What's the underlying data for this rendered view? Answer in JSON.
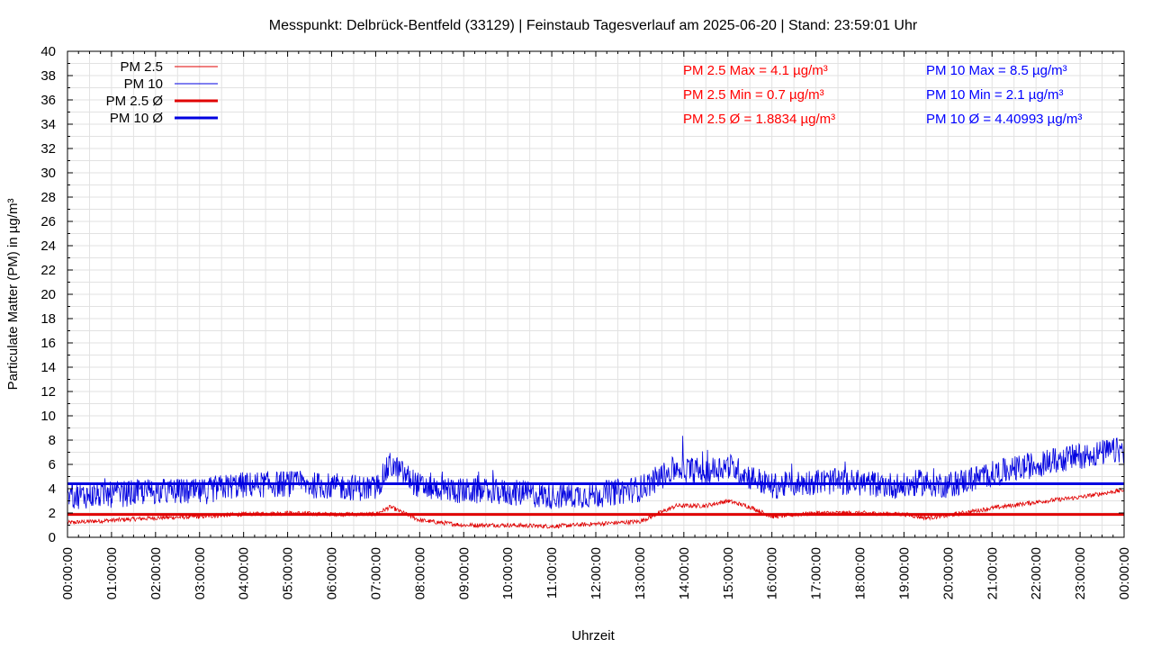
{
  "chart_data": {
    "type": "line",
    "title": "Messpunkt: Delbrück-Bentfeld (33129) | Feinstaub Tagesverlauf am 2025-06-20 | Stand: 23:59:01 Uhr",
    "xlabel": "Uhrzeit",
    "ylabel": "Particulate Matter (PM) in µg/m³",
    "ylim": [
      0,
      40
    ],
    "yticks": [
      0,
      2,
      4,
      6,
      8,
      10,
      12,
      14,
      16,
      18,
      20,
      22,
      24,
      26,
      28,
      30,
      32,
      34,
      36,
      38,
      40
    ],
    "xlim": [
      "00:00:00",
      "24:00:00"
    ],
    "xtick_labels": [
      "00:00:00",
      "01:00:00",
      "02:00:00",
      "03:00:00",
      "04:00:00",
      "05:00:00",
      "06:00:00",
      "07:00:00",
      "08:00:00",
      "09:00:00",
      "10:00:00",
      "11:00:00",
      "12:00:00",
      "13:00:00",
      "14:00:00",
      "15:00:00",
      "16:00:00",
      "17:00:00",
      "18:00:00",
      "19:00:00",
      "20:00:00",
      "21:00:00",
      "22:00:00",
      "23:00:00",
      "00:00:00"
    ],
    "grid": true,
    "legend_position": "top-left",
    "legend": [
      {
        "label": "PM 2.5",
        "color": "#e00000",
        "style": "thin"
      },
      {
        "label": "PM 10",
        "color": "#0000e0",
        "style": "thin"
      },
      {
        "label": "PM 2.5 Ø",
        "color": "#e00000",
        "style": "thick"
      },
      {
        "label": "PM 10 Ø",
        "color": "#0000e0",
        "style": "thick"
      }
    ],
    "stats_pm25": [
      "PM 2.5 Max = 4.1 µg/m³",
      "PM 2.5 Min = 0.7 µg/m³",
      "PM 2.5 Ø = 1.8834 µg/m³"
    ],
    "stats_pm10": [
      "PM 10 Max = 8.5 µg/m³",
      "PM 10 Min = 2.1 µg/m³",
      "PM 10 Ø = 4.40993 µg/m³"
    ],
    "series": [
      {
        "name": "PM 2.5",
        "color": "#e00000",
        "x": [
          "00:00:00",
          "01:00:00",
          "02:00:00",
          "03:00:00",
          "04:00:00",
          "05:00:00",
          "06:00:00",
          "07:00:00",
          "07:20:00",
          "08:00:00",
          "09:00:00",
          "10:00:00",
          "11:00:00",
          "12:00:00",
          "13:00:00",
          "13:50:00",
          "14:30:00",
          "15:00:00",
          "15:30:00",
          "16:00:00",
          "17:00:00",
          "18:00:00",
          "19:00:00",
          "19:30:00",
          "20:00:00",
          "21:00:00",
          "22:00:00",
          "23:00:00",
          "24:00:00"
        ],
        "values": [
          1.2,
          1.4,
          1.6,
          1.7,
          1.9,
          2.0,
          1.9,
          1.9,
          2.5,
          1.4,
          1.0,
          1.0,
          0.9,
          1.1,
          1.3,
          2.6,
          2.6,
          3.0,
          2.5,
          1.7,
          2.0,
          2.0,
          1.9,
          1.6,
          1.8,
          2.4,
          2.9,
          3.3,
          3.9
        ]
      },
      {
        "name": "PM 10",
        "color": "#0000e0",
        "x": [
          "00:00:00",
          "01:00:00",
          "02:00:00",
          "03:00:00",
          "03:40:00",
          "04:00:00",
          "05:00:00",
          "06:00:00",
          "07:00:00",
          "07:20:00",
          "08:00:00",
          "09:00:00",
          "10:00:00",
          "11:00:00",
          "12:00:00",
          "13:00:00",
          "13:50:00",
          "14:30:00",
          "15:00:00",
          "15:30:00",
          "16:00:00",
          "17:00:00",
          "18:00:00",
          "19:00:00",
          "19:20:00",
          "20:00:00",
          "21:00:00",
          "22:00:00",
          "23:00:00",
          "24:00:00"
        ],
        "values": [
          3.4,
          3.5,
          3.8,
          3.7,
          4.2,
          4.3,
          4.4,
          4.2,
          4.0,
          6.0,
          4.2,
          3.8,
          3.7,
          3.4,
          3.5,
          4.0,
          5.7,
          5.4,
          5.9,
          5.0,
          4.2,
          4.6,
          4.5,
          4.2,
          4.5,
          4.3,
          5.2,
          6.0,
          6.7,
          7.2
        ]
      },
      {
        "name": "PM 2.5 Ø",
        "color": "#e00000",
        "x": [
          "00:00:00",
          "24:00:00"
        ],
        "values": [
          1.8834,
          1.8834
        ]
      },
      {
        "name": "PM 10 Ø",
        "color": "#0000e0",
        "x": [
          "00:00:00",
          "24:00:00"
        ],
        "values": [
          4.40993,
          4.40993
        ]
      }
    ]
  }
}
